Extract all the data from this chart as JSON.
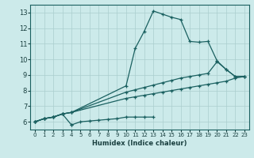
{
  "xlabel": "Humidex (Indice chaleur)",
  "bg_color": "#cceaea",
  "grid_color": "#aacece",
  "line_color": "#1a6060",
  "xlim": [
    -0.5,
    23.5
  ],
  "ylim": [
    5.5,
    13.5
  ],
  "xticks": [
    0,
    1,
    2,
    3,
    4,
    5,
    6,
    7,
    8,
    9,
    10,
    11,
    12,
    13,
    14,
    15,
    16,
    17,
    18,
    19,
    20,
    21,
    22,
    23
  ],
  "yticks": [
    6,
    7,
    8,
    9,
    10,
    11,
    12,
    13
  ],
  "line1_x": [
    0,
    1,
    2,
    3,
    4,
    4,
    5,
    6,
    7,
    8,
    9,
    10,
    11,
    12,
    13
  ],
  "line1_y": [
    6.0,
    6.2,
    6.3,
    6.5,
    5.8,
    5.8,
    6.0,
    6.05,
    6.1,
    6.15,
    6.2,
    6.3,
    6.3,
    6.3,
    6.3
  ],
  "line2_x": [
    0,
    1,
    2,
    3,
    4,
    10,
    11,
    12,
    13,
    14,
    15,
    16,
    17,
    18,
    19,
    20,
    21,
    22,
    23
  ],
  "line2_y": [
    6.0,
    6.2,
    6.3,
    6.5,
    6.6,
    7.5,
    7.6,
    7.7,
    7.8,
    7.9,
    8.0,
    8.1,
    8.2,
    8.3,
    8.4,
    8.5,
    8.6,
    8.8,
    8.9
  ],
  "line3_x": [
    0,
    1,
    2,
    3,
    4,
    10,
    11,
    12,
    13,
    14,
    15,
    16,
    17,
    18,
    19,
    20,
    21,
    22,
    23
  ],
  "line3_y": [
    6.0,
    6.2,
    6.3,
    6.5,
    6.6,
    8.3,
    10.7,
    11.8,
    13.1,
    12.9,
    12.7,
    12.55,
    11.15,
    11.1,
    11.15,
    9.9,
    9.35,
    8.9,
    8.9
  ],
  "line4_x": [
    0,
    1,
    2,
    3,
    4,
    10,
    11,
    12,
    13,
    14,
    15,
    16,
    17,
    18,
    19,
    20,
    21,
    22,
    23
  ],
  "line4_y": [
    6.0,
    6.2,
    6.3,
    6.5,
    6.6,
    7.9,
    8.05,
    8.2,
    8.35,
    8.5,
    8.65,
    8.8,
    8.9,
    9.0,
    9.1,
    9.85,
    9.35,
    8.9,
    8.9
  ]
}
